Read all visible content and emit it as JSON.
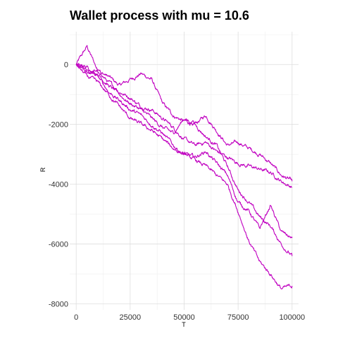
{
  "chart_data": {
    "type": "line",
    "title": "Wallet process with mu =  10.6",
    "xlabel": "T",
    "ylabel": "R",
    "xlim": [
      -3000,
      103000
    ],
    "ylim": [
      -8200,
      1100
    ],
    "x_ticks": [
      0,
      25000,
      50000,
      75000,
      100000
    ],
    "x_tick_labels": [
      "0",
      "25000",
      "50000",
      "75000",
      "100000"
    ],
    "y_ticks": [
      0,
      -2000,
      -4000,
      -6000,
      -8000
    ],
    "y_tick_labels": [
      "0",
      "-2000",
      "-4000",
      "-6000",
      "-8000"
    ],
    "grid": true,
    "legend": "none",
    "series_color": "#c000c0",
    "series": [
      {
        "x": [
          0,
          5000,
          10000,
          15000,
          20000,
          25000,
          30000,
          35000,
          40000,
          45000,
          50000,
          55000,
          60000,
          65000,
          70000,
          75000,
          80000,
          85000,
          90000,
          95000,
          100000
        ],
        "values": [
          0,
          600,
          -200,
          -400,
          -700,
          -500,
          -300,
          -500,
          -1300,
          -1700,
          -1900,
          -2000,
          -1700,
          -2200,
          -2700,
          -2600,
          -2800,
          -3000,
          -3300,
          -3700,
          -3900
        ]
      },
      {
        "x": [
          0,
          5000,
          10000,
          15000,
          20000,
          25000,
          30000,
          35000,
          40000,
          45000,
          50000,
          55000,
          60000,
          65000,
          70000,
          75000,
          80000,
          85000,
          90000,
          95000,
          100000
        ],
        "values": [
          0,
          -300,
          -200,
          -600,
          -900,
          -1100,
          -1400,
          -1500,
          -1800,
          -2100,
          -2500,
          -2700,
          -2600,
          -2900,
          -3100,
          -3300,
          -3400,
          -3500,
          -3600,
          -3900,
          -4100
        ]
      },
      {
        "x": [
          0,
          5000,
          10000,
          15000,
          20000,
          25000,
          30000,
          35000,
          40000,
          45000,
          50000,
          55000,
          60000,
          65000,
          70000,
          75000,
          80000,
          85000,
          90000,
          95000,
          100000
        ],
        "values": [
          0,
          -100,
          -300,
          -700,
          -1000,
          -1300,
          -1500,
          -1800,
          -2100,
          -2300,
          -1800,
          -2000,
          -2400,
          -2700,
          -3400,
          -4200,
          -4600,
          -5100,
          -5400,
          -6000,
          -6400
        ]
      },
      {
        "x": [
          0,
          5000,
          10000,
          15000,
          20000,
          25000,
          30000,
          35000,
          40000,
          45000,
          50000,
          55000,
          60000,
          65000,
          70000,
          75000,
          80000,
          85000,
          90000,
          95000,
          100000
        ],
        "values": [
          0,
          -200,
          -400,
          -900,
          -1200,
          -1500,
          -1700,
          -2000,
          -2300,
          -2700,
          -3000,
          -3100,
          -2900,
          -3300,
          -3700,
          -4600,
          -4900,
          -5500,
          -4700,
          -5600,
          -5800
        ]
      },
      {
        "x": [
          0,
          5000,
          10000,
          15000,
          20000,
          25000,
          30000,
          35000,
          40000,
          45000,
          50000,
          55000,
          60000,
          65000,
          70000,
          75000,
          80000,
          85000,
          90000,
          95000,
          100000
        ],
        "values": [
          0,
          -400,
          -600,
          -1000,
          -1400,
          -1800,
          -2000,
          -2200,
          -2500,
          -2800,
          -3000,
          -3200,
          -3400,
          -3700,
          -4000,
          -4900,
          -5900,
          -6600,
          -7000,
          -7500,
          -7400
        ]
      }
    ]
  }
}
